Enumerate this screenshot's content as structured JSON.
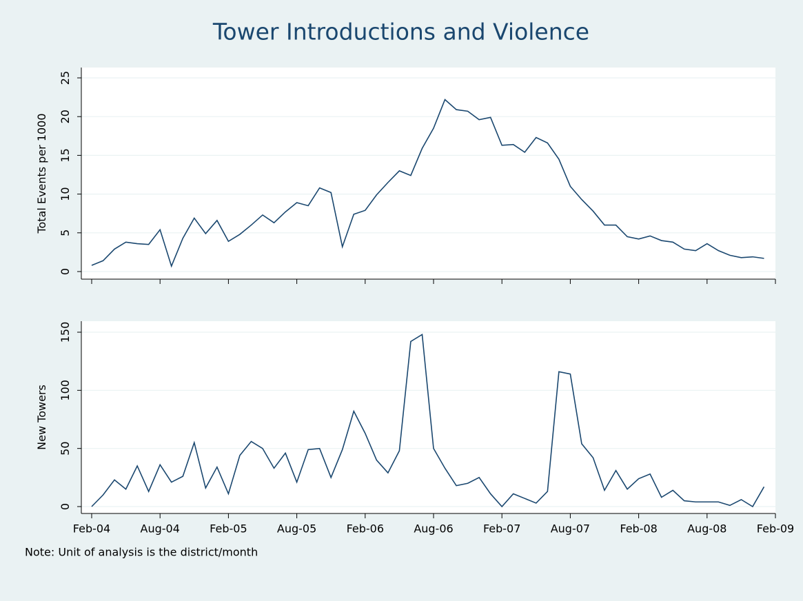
{
  "title": "Tower Introductions and Violence",
  "note": "Note: Unit of analysis is the district/month",
  "chart_data": [
    {
      "type": "line",
      "y_label": "Total Events per 1000",
      "color": "#1a476f",
      "grid": true,
      "x": [
        "2004-02",
        "2004-03",
        "2004-04",
        "2004-05",
        "2004-06",
        "2004-07",
        "2004-08",
        "2004-09",
        "2004-10",
        "2004-11",
        "2004-12",
        "2005-01",
        "2005-02",
        "2005-03",
        "2005-04",
        "2005-05",
        "2005-06",
        "2005-07",
        "2005-08",
        "2005-09",
        "2005-10",
        "2005-11",
        "2005-12",
        "2006-01",
        "2006-02",
        "2006-03",
        "2006-04",
        "2006-05",
        "2006-06",
        "2006-07",
        "2006-08",
        "2006-09",
        "2006-10",
        "2006-11",
        "2006-12",
        "2007-01",
        "2007-02",
        "2007-03",
        "2007-04",
        "2007-05",
        "2007-06",
        "2007-07",
        "2007-08",
        "2007-09",
        "2007-10",
        "2007-11",
        "2007-12",
        "2008-01",
        "2008-02",
        "2008-03",
        "2008-04",
        "2008-05",
        "2008-06",
        "2008-07",
        "2008-08",
        "2008-09",
        "2008-10",
        "2008-11",
        "2008-12",
        "2009-01"
      ],
      "values": [
        0.8,
        1.4,
        2.9,
        3.8,
        3.6,
        3.5,
        5.4,
        0.7,
        4.3,
        6.9,
        4.9,
        6.6,
        3.9,
        4.8,
        6.0,
        7.3,
        6.3,
        7.7,
        8.9,
        8.5,
        10.8,
        10.2,
        3.2,
        7.4,
        7.9,
        9.9,
        11.5,
        13.0,
        12.4,
        15.9,
        18.5,
        22.2,
        20.9,
        20.7,
        19.6,
        19.9,
        16.3,
        16.4,
        15.4,
        17.3,
        16.6,
        14.5,
        11.0,
        9.3,
        7.8,
        6.0,
        6.0,
        4.5,
        4.2,
        4.6,
        4.0,
        3.8,
        2.9,
        2.7,
        3.6,
        2.7,
        2.1,
        1.8,
        1.9,
        1.7
      ],
      "xlim": [
        "2004-02",
        "2009-02"
      ],
      "ylim": [
        0,
        25
      ],
      "yticks": [
        0,
        5,
        10,
        15,
        20,
        25
      ]
    },
    {
      "type": "line",
      "y_label": "New Towers",
      "color": "#1a476f",
      "grid": true,
      "x": [
        "2004-02",
        "2004-03",
        "2004-04",
        "2004-05",
        "2004-06",
        "2004-07",
        "2004-08",
        "2004-09",
        "2004-10",
        "2004-11",
        "2004-12",
        "2005-01",
        "2005-02",
        "2005-03",
        "2005-04",
        "2005-05",
        "2005-06",
        "2005-07",
        "2005-08",
        "2005-09",
        "2005-10",
        "2005-11",
        "2005-12",
        "2006-01",
        "2006-02",
        "2006-03",
        "2006-04",
        "2006-05",
        "2006-06",
        "2006-07",
        "2006-08",
        "2006-09",
        "2006-10",
        "2006-11",
        "2006-12",
        "2007-01",
        "2007-02",
        "2007-03",
        "2007-04",
        "2007-05",
        "2007-06",
        "2007-07",
        "2007-08",
        "2007-09",
        "2007-10",
        "2007-11",
        "2007-12",
        "2008-01",
        "2008-02",
        "2008-03",
        "2008-04",
        "2008-05",
        "2008-06",
        "2008-07",
        "2008-08",
        "2008-09",
        "2008-10",
        "2008-11",
        "2008-12",
        "2009-01"
      ],
      "values": [
        0,
        10,
        23,
        15,
        35,
        13,
        36,
        21,
        26,
        55,
        16,
        34,
        11,
        44,
        56,
        50,
        33,
        46,
        21,
        49,
        50,
        25,
        49,
        82,
        63,
        40,
        29,
        48,
        142,
        148,
        50,
        33,
        18,
        20,
        25,
        11,
        0,
        11,
        7,
        3,
        13,
        116,
        114,
        54,
        42,
        14,
        31,
        15,
        24,
        28,
        8,
        14,
        5,
        4,
        4,
        4,
        1,
        6,
        0,
        17
      ],
      "xlim": [
        "2004-02",
        "2009-02"
      ],
      "ylim": [
        0,
        150
      ],
      "yticks": [
        0,
        50,
        100,
        150
      ],
      "xticks": [
        {
          "value": "2004-02",
          "label": "Feb-04"
        },
        {
          "value": "2004-08",
          "label": "Aug-04"
        },
        {
          "value": "2005-02",
          "label": "Feb-05"
        },
        {
          "value": "2005-08",
          "label": "Aug-05"
        },
        {
          "value": "2006-02",
          "label": "Feb-06"
        },
        {
          "value": "2006-08",
          "label": "Aug-06"
        },
        {
          "value": "2007-02",
          "label": "Feb-07"
        },
        {
          "value": "2007-08",
          "label": "Aug-07"
        },
        {
          "value": "2008-02",
          "label": "Feb-08"
        },
        {
          "value": "2008-08",
          "label": "Aug-08"
        },
        {
          "value": "2009-02",
          "label": "Feb-09"
        }
      ]
    }
  ]
}
